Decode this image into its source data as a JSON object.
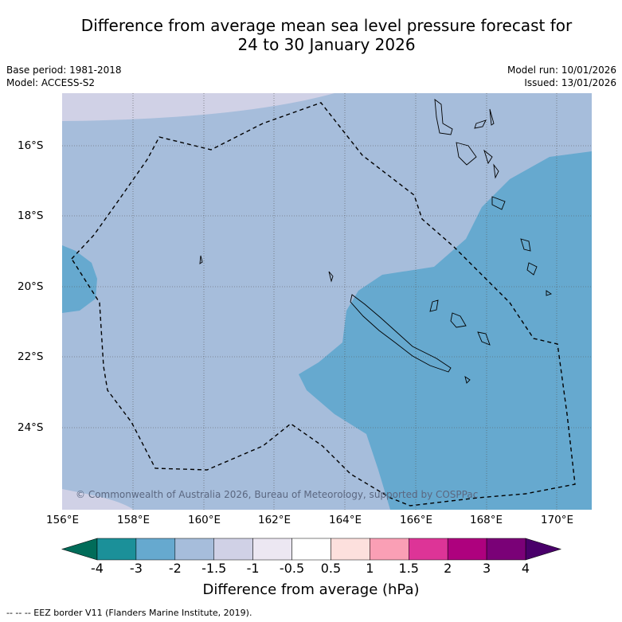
{
  "title_line1": "Difference from average mean sea level pressure forecast for",
  "title_line2": "24 to 30 January 2026",
  "base_period": "Base period: 1981-2018",
  "model": "Model: ACCESS-S2",
  "model_run": "Model run: 10/01/2026",
  "issued": "Issued: 13/01/2026",
  "lat_labels": [
    "16°S",
    "18°S",
    "20°S",
    "22°S",
    "24°S"
  ],
  "lon_labels": [
    "156°E",
    "158°E",
    "160°E",
    "162°E",
    "164°E",
    "166°E",
    "168°E",
    "170°E"
  ],
  "copyright": "© Commonwealth of Australia 2026, Bureau of Meteorology, supported by COSPPac",
  "colorbar": {
    "title": "Difference from average (hPa)",
    "ticks": [
      "-4",
      "-3",
      "-2",
      "-1.5",
      "-1",
      "-0.5",
      "0.5",
      "1",
      "1.5",
      "2",
      "3",
      "4"
    ],
    "colors": [
      "#1b9099",
      "#66a9cf",
      "#a6bddb",
      "#d0d1e6",
      "#ece7f2",
      "#ffffff",
      "#fde0dd",
      "#fa9fb5",
      "#dd3497",
      "#ae017e",
      "#7a0177"
    ],
    "under_color": "#016c59",
    "over_color": "#49006a"
  },
  "footer": "--  --  -- EEZ border V11 (Flanders Marine Institute, 2019)."
}
